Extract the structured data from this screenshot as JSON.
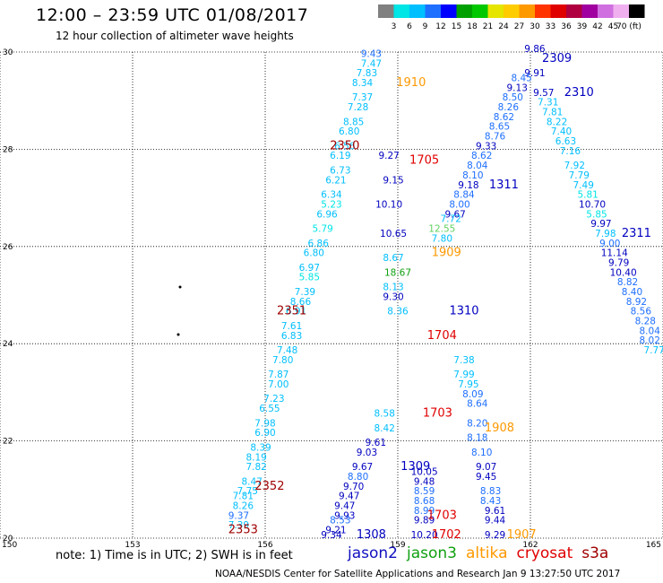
{
  "header": {
    "title": "12:00 – 23:59 UTC 01/08/2017",
    "subtitle": "12 hour collection of altimeter wave heights"
  },
  "colorbar": {
    "labels": [
      "3",
      "6",
      "9",
      "12",
      "15",
      "18",
      "21",
      "24",
      "27",
      "30",
      "33",
      "36",
      "39",
      "42",
      "45",
      "70 (ft)"
    ],
    "colors": [
      "#808080",
      "#00e5e5",
      "#00bfff",
      "#1e6fff",
      "#0000ff",
      "#00a000",
      "#00c800",
      "#e5e500",
      "#ffcc00",
      "#ff9900",
      "#ff3300",
      "#e00000",
      "#b00040",
      "#a000a0",
      "#d070e0",
      "#f0b0f0",
      "#000000"
    ]
  },
  "footer": {
    "note": "note: 1) Time is in UTC; 2) SWH is in feet",
    "legend": [
      {
        "label": "jason2",
        "color": "#1010c0"
      },
      {
        "label": "jason3",
        "color": "#10a010"
      },
      {
        "label": "altika",
        "color": "#ff9900"
      },
      {
        "label": "cryosat",
        "color": "#e00000"
      },
      {
        "label": "s3a",
        "color": "#a00000"
      }
    ],
    "credit": "NOAA/NESDIS Center for Satellite Applications and Research    Jan  9 13:27:50 UTC 2017"
  },
  "chart_data": {
    "type": "scatter",
    "x_ticks": [
      150,
      153,
      156,
      159,
      162,
      165
    ],
    "y_ticks": [
      20,
      22,
      24,
      26,
      28,
      30
    ],
    "xlim": [
      150,
      165
    ],
    "ylim": [
      20,
      30
    ],
    "grid": true,
    "pass_labels": [
      {
        "text": "2309",
        "lon": 162.6,
        "lat": 29.8,
        "color": "#0000c0"
      },
      {
        "text": "2310",
        "lon": 163.1,
        "lat": 29.1,
        "color": "#0000c0"
      },
      {
        "text": "2311",
        "lon": 164.4,
        "lat": 26.2,
        "color": "#0000c0"
      },
      {
        "text": "1910",
        "lon": 159.3,
        "lat": 29.3,
        "color": "#ff9900"
      },
      {
        "text": "2350",
        "lon": 157.8,
        "lat": 28.0,
        "color": "#a00000"
      },
      {
        "text": "1705",
        "lon": 159.6,
        "lat": 27.7,
        "color": "#e00000"
      },
      {
        "text": "1311",
        "lon": 161.4,
        "lat": 27.2,
        "color": "#0000c0"
      },
      {
        "text": "1909",
        "lon": 160.1,
        "lat": 25.8,
        "color": "#ff9900"
      },
      {
        "text": "2351",
        "lon": 156.6,
        "lat": 24.6,
        "color": "#a00000"
      },
      {
        "text": "1310",
        "lon": 160.5,
        "lat": 24.6,
        "color": "#0000c0"
      },
      {
        "text": "1704",
        "lon": 160.0,
        "lat": 24.1,
        "color": "#e00000"
      },
      {
        "text": "1703",
        "lon": 159.9,
        "lat": 22.5,
        "color": "#e00000"
      },
      {
        "text": "1908",
        "lon": 161.3,
        "lat": 22.2,
        "color": "#ff9900"
      },
      {
        "text": "1309",
        "lon": 159.4,
        "lat": 21.4,
        "color": "#0000c0"
      },
      {
        "text": "2352",
        "lon": 156.1,
        "lat": 21.0,
        "color": "#a00000"
      },
      {
        "text": "1703",
        "lon": 160.0,
        "lat": 20.4,
        "color": "#e00000"
      },
      {
        "text": "1702",
        "lon": 160.1,
        "lat": 20.0,
        "color": "#e00000"
      },
      {
        "text": "1907",
        "lon": 161.8,
        "lat": 20.0,
        "color": "#ff9900"
      },
      {
        "text": "2353",
        "lon": 155.5,
        "lat": 20.1,
        "color": "#a00000"
      },
      {
        "text": "1308",
        "lon": 158.4,
        "lat": 20.0,
        "color": "#0000c0"
      }
    ],
    "values": [
      {
        "text": "9.43",
        "lon": 158.4,
        "lat": 29.9,
        "color": "#1e6fff"
      },
      {
        "text": "7.47",
        "lon": 158.4,
        "lat": 29.7,
        "color": "#00bfff"
      },
      {
        "text": "7.83",
        "lon": 158.3,
        "lat": 29.5,
        "color": "#00bfff"
      },
      {
        "text": "8.34",
        "lon": 158.2,
        "lat": 29.3,
        "color": "#00bfff"
      },
      {
        "text": "7.37",
        "lon": 158.2,
        "lat": 29.0,
        "color": "#00bfff"
      },
      {
        "text": "7.28",
        "lon": 158.1,
        "lat": 28.8,
        "color": "#00bfff"
      },
      {
        "text": "8.85",
        "lon": 158.0,
        "lat": 28.5,
        "color": "#00bfff"
      },
      {
        "text": "6.80",
        "lon": 157.9,
        "lat": 28.3,
        "color": "#00bfff"
      },
      {
        "text": "6.56",
        "lon": 157.8,
        "lat": 28.0,
        "color": "#00bfff"
      },
      {
        "text": "6.19",
        "lon": 157.7,
        "lat": 27.8,
        "color": "#00bfff"
      },
      {
        "text": "6.73",
        "lon": 157.7,
        "lat": 27.5,
        "color": "#00bfff"
      },
      {
        "text": "6.21",
        "lon": 157.6,
        "lat": 27.3,
        "color": "#00bfff"
      },
      {
        "text": "6.34",
        "lon": 157.5,
        "lat": 27.0,
        "color": "#00bfff"
      },
      {
        "text": "5.23",
        "lon": 157.5,
        "lat": 26.8,
        "color": "#00e5e5"
      },
      {
        "text": "6.96",
        "lon": 157.4,
        "lat": 26.6,
        "color": "#00bfff"
      },
      {
        "text": "5.79",
        "lon": 157.3,
        "lat": 26.3,
        "color": "#00e5e5"
      },
      {
        "text": "6.86",
        "lon": 157.2,
        "lat": 26.0,
        "color": "#00bfff"
      },
      {
        "text": "6.80",
        "lon": 157.1,
        "lat": 25.8,
        "color": "#00bfff"
      },
      {
        "text": "6.97",
        "lon": 157.0,
        "lat": 25.5,
        "color": "#00bfff"
      },
      {
        "text": "5.85",
        "lon": 157.0,
        "lat": 25.3,
        "color": "#00e5e5"
      },
      {
        "text": "7.39",
        "lon": 156.9,
        "lat": 25.0,
        "color": "#00bfff"
      },
      {
        "text": "8.66",
        "lon": 156.8,
        "lat": 24.8,
        "color": "#00bfff"
      },
      {
        "text": "6.91",
        "lon": 156.7,
        "lat": 24.6,
        "color": "#00bfff"
      },
      {
        "text": "7.61",
        "lon": 156.6,
        "lat": 24.3,
        "color": "#00bfff"
      },
      {
        "text": "6.83",
        "lon": 156.6,
        "lat": 24.1,
        "color": "#00bfff"
      },
      {
        "text": "7.48",
        "lon": 156.5,
        "lat": 23.8,
        "color": "#00bfff"
      },
      {
        "text": "7.80",
        "lon": 156.4,
        "lat": 23.6,
        "color": "#00bfff"
      },
      {
        "text": "7.87",
        "lon": 156.3,
        "lat": 23.3,
        "color": "#00bfff"
      },
      {
        "text": "7.00",
        "lon": 156.3,
        "lat": 23.1,
        "color": "#00bfff"
      },
      {
        "text": "7.23",
        "lon": 156.2,
        "lat": 22.8,
        "color": "#00bfff"
      },
      {
        "text": "6.55",
        "lon": 156.1,
        "lat": 22.6,
        "color": "#00bfff"
      },
      {
        "text": "7.98",
        "lon": 156.0,
        "lat": 22.3,
        "color": "#00bfff"
      },
      {
        "text": "6.90",
        "lon": 156.0,
        "lat": 22.1,
        "color": "#00bfff"
      },
      {
        "text": "8.39",
        "lon": 155.9,
        "lat": 21.8,
        "color": "#00bfff"
      },
      {
        "text": "8.19",
        "lon": 155.8,
        "lat": 21.6,
        "color": "#00bfff"
      },
      {
        "text": "7.82",
        "lon": 155.8,
        "lat": 21.4,
        "color": "#00bfff"
      },
      {
        "text": "8.47",
        "lon": 155.7,
        "lat": 21.1,
        "color": "#00bfff"
      },
      {
        "text": "7.75",
        "lon": 155.6,
        "lat": 20.9,
        "color": "#00bfff"
      },
      {
        "text": "7.81",
        "lon": 155.5,
        "lat": 20.8,
        "color": "#00bfff"
      },
      {
        "text": "8.26",
        "lon": 155.5,
        "lat": 20.6,
        "color": "#00bfff"
      },
      {
        "text": "9.37",
        "lon": 155.4,
        "lat": 20.4,
        "color": "#1e6fff"
      },
      {
        "text": "7.39",
        "lon": 155.4,
        "lat": 20.2,
        "color": "#00bfff"
      },
      {
        "text": "9.27",
        "lon": 158.8,
        "lat": 27.8,
        "color": "#0000c0"
      },
      {
        "text": "9.15",
        "lon": 158.9,
        "lat": 27.3,
        "color": "#0000c0"
      },
      {
        "text": "10.10",
        "lon": 158.8,
        "lat": 26.8,
        "color": "#0000c0"
      },
      {
        "text": "10.65",
        "lon": 158.9,
        "lat": 26.2,
        "color": "#0000c0"
      },
      {
        "text": "8.67",
        "lon": 158.9,
        "lat": 25.7,
        "color": "#00bfff"
      },
      {
        "text": "18.67",
        "lon": 159.0,
        "lat": 25.4,
        "color": "#10a010"
      },
      {
        "text": "8.13",
        "lon": 158.9,
        "lat": 25.1,
        "color": "#00bfff"
      },
      {
        "text": "9.30",
        "lon": 158.9,
        "lat": 24.9,
        "color": "#0000c0"
      },
      {
        "text": "8.36",
        "lon": 159.0,
        "lat": 24.6,
        "color": "#00bfff"
      },
      {
        "text": "8.58",
        "lon": 158.7,
        "lat": 22.5,
        "color": "#00bfff"
      },
      {
        "text": "8.42",
        "lon": 158.7,
        "lat": 22.2,
        "color": "#00bfff"
      },
      {
        "text": "9.61",
        "lon": 158.5,
        "lat": 21.9,
        "color": "#0000c0"
      },
      {
        "text": "9.03",
        "lon": 158.3,
        "lat": 21.7,
        "color": "#0000c0"
      },
      {
        "text": "9.67",
        "lon": 158.2,
        "lat": 21.4,
        "color": "#0000c0"
      },
      {
        "text": "8.80",
        "lon": 158.1,
        "lat": 21.2,
        "color": "#1e6fff"
      },
      {
        "text": "9.70",
        "lon": 158.0,
        "lat": 21.0,
        "color": "#0000c0"
      },
      {
        "text": "9.47",
        "lon": 157.9,
        "lat": 20.8,
        "color": "#0000c0"
      },
      {
        "text": "9.47",
        "lon": 157.8,
        "lat": 20.6,
        "color": "#0000c0"
      },
      {
        "text": "9.93",
        "lon": 157.8,
        "lat": 20.4,
        "color": "#0000c0"
      },
      {
        "text": "8.53",
        "lon": 157.7,
        "lat": 20.3,
        "color": "#1e6fff"
      },
      {
        "text": "9.21",
        "lon": 157.6,
        "lat": 20.1,
        "color": "#0000c0"
      },
      {
        "text": "9.34",
        "lon": 157.5,
        "lat": 20.0,
        "color": "#0000c0"
      },
      {
        "text": "10.05",
        "lon": 159.6,
        "lat": 21.3,
        "color": "#0000c0"
      },
      {
        "text": "9.48",
        "lon": 159.6,
        "lat": 21.1,
        "color": "#0000c0"
      },
      {
        "text": "8.59",
        "lon": 159.6,
        "lat": 20.9,
        "color": "#1e6fff"
      },
      {
        "text": "8.68",
        "lon": 159.6,
        "lat": 20.7,
        "color": "#1e6fff"
      },
      {
        "text": "8.99",
        "lon": 159.6,
        "lat": 20.5,
        "color": "#1e6fff"
      },
      {
        "text": "9.89",
        "lon": 159.6,
        "lat": 20.3,
        "color": "#0000c0"
      },
      {
        "text": "10.20",
        "lon": 159.6,
        "lat": 20.0,
        "color": "#0000c0"
      },
      {
        "text": "9.86",
        "lon": 162.1,
        "lat": 30.0,
        "color": "#0000c0"
      },
      {
        "text": "9.91",
        "lon": 162.1,
        "lat": 29.5,
        "color": "#0000c0"
      },
      {
        "text": "8.45",
        "lon": 161.8,
        "lat": 29.4,
        "color": "#1e6fff"
      },
      {
        "text": "9.13",
        "lon": 161.7,
        "lat": 29.2,
        "color": "#0000c0"
      },
      {
        "text": "8.50",
        "lon": 161.6,
        "lat": 29.0,
        "color": "#1e6fff"
      },
      {
        "text": "8.26",
        "lon": 161.5,
        "lat": 28.8,
        "color": "#1e6fff"
      },
      {
        "text": "8.62",
        "lon": 161.4,
        "lat": 28.6,
        "color": "#1e6fff"
      },
      {
        "text": "8.65",
        "lon": 161.3,
        "lat": 28.4,
        "color": "#1e6fff"
      },
      {
        "text": "8.76",
        "lon": 161.2,
        "lat": 28.2,
        "color": "#1e6fff"
      },
      {
        "text": "9.33",
        "lon": 161.0,
        "lat": 28.0,
        "color": "#0000c0"
      },
      {
        "text": "8.62",
        "lon": 160.9,
        "lat": 27.8,
        "color": "#1e6fff"
      },
      {
        "text": "8.04",
        "lon": 160.8,
        "lat": 27.6,
        "color": "#1e6fff"
      },
      {
        "text": "8.10",
        "lon": 160.7,
        "lat": 27.4,
        "color": "#1e6fff"
      },
      {
        "text": "9.18",
        "lon": 160.6,
        "lat": 27.2,
        "color": "#0000c0"
      },
      {
        "text": "8.84",
        "lon": 160.5,
        "lat": 27.0,
        "color": "#1e6fff"
      },
      {
        "text": "8.00",
        "lon": 160.4,
        "lat": 26.8,
        "color": "#1e6fff"
      },
      {
        "text": "9.67",
        "lon": 160.3,
        "lat": 26.6,
        "color": "#0000c0"
      },
      {
        "text": "7.72",
        "lon": 160.2,
        "lat": 26.5,
        "color": "#00bfff"
      },
      {
        "text": "12.55",
        "lon": 160.0,
        "lat": 26.3,
        "color": "#60d060"
      },
      {
        "text": "7.80",
        "lon": 160.0,
        "lat": 26.1,
        "color": "#00bfff"
      },
      {
        "text": "9.57",
        "lon": 162.3,
        "lat": 29.1,
        "color": "#0000c0"
      },
      {
        "text": "7.31",
        "lon": 162.4,
        "lat": 28.9,
        "color": "#00bfff"
      },
      {
        "text": "7.81",
        "lon": 162.5,
        "lat": 28.7,
        "color": "#00bfff"
      },
      {
        "text": "8.22",
        "lon": 162.6,
        "lat": 28.5,
        "color": "#00bfff"
      },
      {
        "text": "7.40",
        "lon": 162.7,
        "lat": 28.3,
        "color": "#00bfff"
      },
      {
        "text": "6.63",
        "lon": 162.8,
        "lat": 28.1,
        "color": "#00bfff"
      },
      {
        "text": "7.16",
        "lon": 162.9,
        "lat": 27.9,
        "color": "#00bfff"
      },
      {
        "text": "7.92",
        "lon": 163.0,
        "lat": 27.6,
        "color": "#00bfff"
      },
      {
        "text": "7.79",
        "lon": 163.1,
        "lat": 27.4,
        "color": "#00bfff"
      },
      {
        "text": "7.49",
        "lon": 163.2,
        "lat": 27.2,
        "color": "#00bfff"
      },
      {
        "text": "5.81",
        "lon": 163.3,
        "lat": 27.0,
        "color": "#00e5e5"
      },
      {
        "text": "10.70",
        "lon": 163.4,
        "lat": 26.8,
        "color": "#0000c0"
      },
      {
        "text": "5.85",
        "lon": 163.5,
        "lat": 26.6,
        "color": "#00e5e5"
      },
      {
        "text": "9.97",
        "lon": 163.6,
        "lat": 26.4,
        "color": "#0000c0"
      },
      {
        "text": "7.98",
        "lon": 163.7,
        "lat": 26.2,
        "color": "#00bfff"
      },
      {
        "text": "9.00",
        "lon": 163.8,
        "lat": 26.0,
        "color": "#1e6fff"
      },
      {
        "text": "11.14",
        "lon": 163.9,
        "lat": 25.8,
        "color": "#0000c0"
      },
      {
        "text": "9.79",
        "lon": 164.0,
        "lat": 25.6,
        "color": "#0000c0"
      },
      {
        "text": "10.40",
        "lon": 164.1,
        "lat": 25.4,
        "color": "#0000c0"
      },
      {
        "text": "8.82",
        "lon": 164.2,
        "lat": 25.2,
        "color": "#1e6fff"
      },
      {
        "text": "8.40",
        "lon": 164.3,
        "lat": 25.0,
        "color": "#1e6fff"
      },
      {
        "text": "8.92",
        "lon": 164.4,
        "lat": 24.8,
        "color": "#1e6fff"
      },
      {
        "text": "8.56",
        "lon": 164.5,
        "lat": 24.6,
        "color": "#1e6fff"
      },
      {
        "text": "8.28",
        "lon": 164.6,
        "lat": 24.4,
        "color": "#1e6fff"
      },
      {
        "text": "8.04",
        "lon": 164.7,
        "lat": 24.2,
        "color": "#1e6fff"
      },
      {
        "text": "8.02",
        "lon": 164.7,
        "lat": 24.0,
        "color": "#1e6fff"
      },
      {
        "text": "7.77",
        "lon": 164.8,
        "lat": 23.8,
        "color": "#00bfff"
      },
      {
        "text": "7.38",
        "lon": 160.5,
        "lat": 23.6,
        "color": "#00bfff"
      },
      {
        "text": "7.99",
        "lon": 160.5,
        "lat": 23.3,
        "color": "#00bfff"
      },
      {
        "text": "7.95",
        "lon": 160.6,
        "lat": 23.1,
        "color": "#00bfff"
      },
      {
        "text": "8.09",
        "lon": 160.7,
        "lat": 22.9,
        "color": "#1e6fff"
      },
      {
        "text": "8.64",
        "lon": 160.8,
        "lat": 22.7,
        "color": "#1e6fff"
      },
      {
        "text": "8.20",
        "lon": 160.8,
        "lat": 22.3,
        "color": "#1e6fff"
      },
      {
        "text": "8.18",
        "lon": 160.8,
        "lat": 22.0,
        "color": "#1e6fff"
      },
      {
        "text": "8.10",
        "lon": 160.9,
        "lat": 21.7,
        "color": "#1e6fff"
      },
      {
        "text": "9.07",
        "lon": 161.0,
        "lat": 21.4,
        "color": "#0000c0"
      },
      {
        "text": "9.45",
        "lon": 161.0,
        "lat": 21.2,
        "color": "#0000c0"
      },
      {
        "text": "8.83",
        "lon": 161.1,
        "lat": 20.9,
        "color": "#1e6fff"
      },
      {
        "text": "8.43",
        "lon": 161.1,
        "lat": 20.7,
        "color": "#1e6fff"
      },
      {
        "text": "9.61",
        "lon": 161.2,
        "lat": 20.5,
        "color": "#0000c0"
      },
      {
        "text": "9.44",
        "lon": 161.2,
        "lat": 20.3,
        "color": "#0000c0"
      },
      {
        "text": "9.29",
        "lon": 161.2,
        "lat": 20.0,
        "color": "#0000c0"
      }
    ]
  }
}
